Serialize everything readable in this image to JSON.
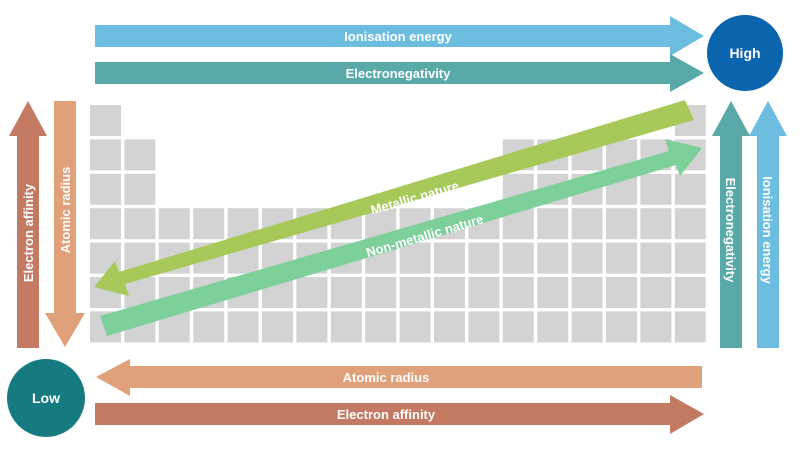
{
  "labels": {
    "high": "High",
    "low": "Low",
    "top_ionisation": "Ionisation energy",
    "top_electronegativity": "Electronegativity",
    "left_electron_affinity": "Electron affinity",
    "left_atomic_radius": "Atomic radius",
    "right_electronegativity": "Electronegativity",
    "right_ionisation": "Ionisation energy",
    "bottom_atomic_radius": "Atomic radius",
    "bottom_electron_affinity": "Electron affinity",
    "diag_metallic": "Metallic nature",
    "diag_nonmetallic": "Non-metallic nature"
  },
  "colors": {
    "ionisation_blue": "#6dbde0",
    "electronegativity_teal": "#5aa9a9",
    "electron_affinity_brown": "#c47a62",
    "atomic_radius_orange": "#e0a079",
    "metallic_green": "#a7c95a",
    "nonmetallic_green": "#7dd09a",
    "high_circle": "#0a64ae",
    "low_circle": "#167b80",
    "grid_cell": "#d3d3d3"
  },
  "periodic_table": {
    "rows": 7,
    "cols": 18,
    "occupied_cols_per_row": [
      [
        0,
        17
      ],
      [
        0,
        1,
        12,
        13,
        14,
        15,
        16,
        17
      ],
      [
        0,
        1,
        12,
        13,
        14,
        15,
        16,
        17
      ],
      [
        0,
        1,
        2,
        3,
        4,
        5,
        6,
        7,
        8,
        9,
        10,
        11,
        12,
        13,
        14,
        15,
        16,
        17
      ],
      [
        0,
        1,
        2,
        3,
        4,
        5,
        6,
        7,
        8,
        9,
        10,
        11,
        12,
        13,
        14,
        15,
        16,
        17
      ],
      [
        0,
        1,
        2,
        3,
        4,
        5,
        6,
        7,
        8,
        9,
        10,
        11,
        12,
        13,
        14,
        15,
        16,
        17
      ],
      [
        0,
        1,
        2,
        3,
        4,
        5,
        6,
        7,
        8,
        9,
        10,
        11,
        12,
        13,
        14,
        15,
        16,
        17
      ]
    ]
  }
}
